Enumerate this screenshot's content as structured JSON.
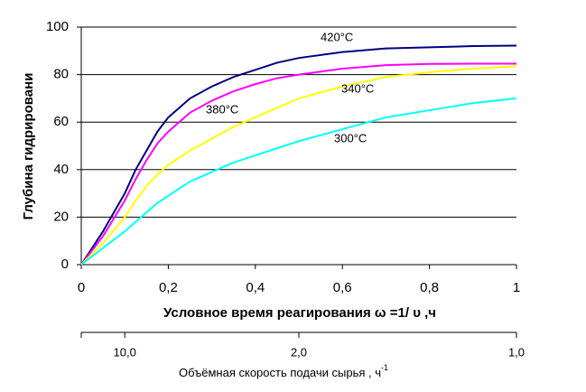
{
  "chart_data": {
    "type": "line",
    "x_label": "Условное время реагирования    ω =1/ υ   ,ч",
    "y_label": "Глубина гидрировани",
    "x": [
      0,
      0.05,
      0.1,
      0.125,
      0.15,
      0.175,
      0.2,
      0.25,
      0.3,
      0.35,
      0.4,
      0.45,
      0.5,
      0.6,
      0.7,
      0.8,
      0.9,
      1.0
    ],
    "series": [
      {
        "name": "420°С",
        "color": "#000080",
        "values": [
          0,
          14,
          30,
          40,
          48,
          56,
          62,
          70,
          75,
          79,
          82,
          85,
          87,
          89.5,
          91,
          91.5,
          92,
          92.2
        ]
      },
      {
        "name": "380°С",
        "color": "#ff00ff",
        "values": [
          0,
          12,
          27,
          36,
          44,
          51,
          56,
          64,
          69,
          73,
          76,
          78.5,
          80,
          82.5,
          84,
          84.5,
          84.6,
          84.6
        ]
      },
      {
        "name": "340°С",
        "color": "#ffff00",
        "values": [
          0,
          9,
          20,
          27,
          33,
          38,
          42,
          48,
          53,
          58,
          62,
          66,
          70,
          75,
          79,
          81,
          82.5,
          83.5
        ]
      },
      {
        "name": "300°С",
        "color": "#00ffff",
        "values": [
          0,
          7,
          14,
          18,
          22,
          26,
          29,
          35,
          39,
          43,
          46,
          49,
          52,
          57,
          62,
          65,
          68,
          70
        ]
      }
    ],
    "xlim": [
      0,
      1
    ],
    "xticks": [
      0,
      {
        "value": 0.2,
        "label": "0,2"
      },
      {
        "value": 0.4,
        "label": "0,4"
      },
      {
        "value": 0.6,
        "label": "0,6"
      },
      {
        "value": 0.8,
        "label": "0,8"
      },
      1
    ],
    "ylim": [
      0,
      100
    ],
    "yticks": [
      0,
      20,
      40,
      60,
      80,
      100
    ],
    "grid": true,
    "x2_label": "Объёмная скорость подачи сырья , ч",
    "x2_label_sup": "-1",
    "x2scale": "reciprocal",
    "x2ticks": [
      {
        "value": 10,
        "label": "10,0"
      },
      {
        "value": 2,
        "label": "2,0"
      },
      {
        "value": 1,
        "label": "1,0"
      }
    ]
  }
}
